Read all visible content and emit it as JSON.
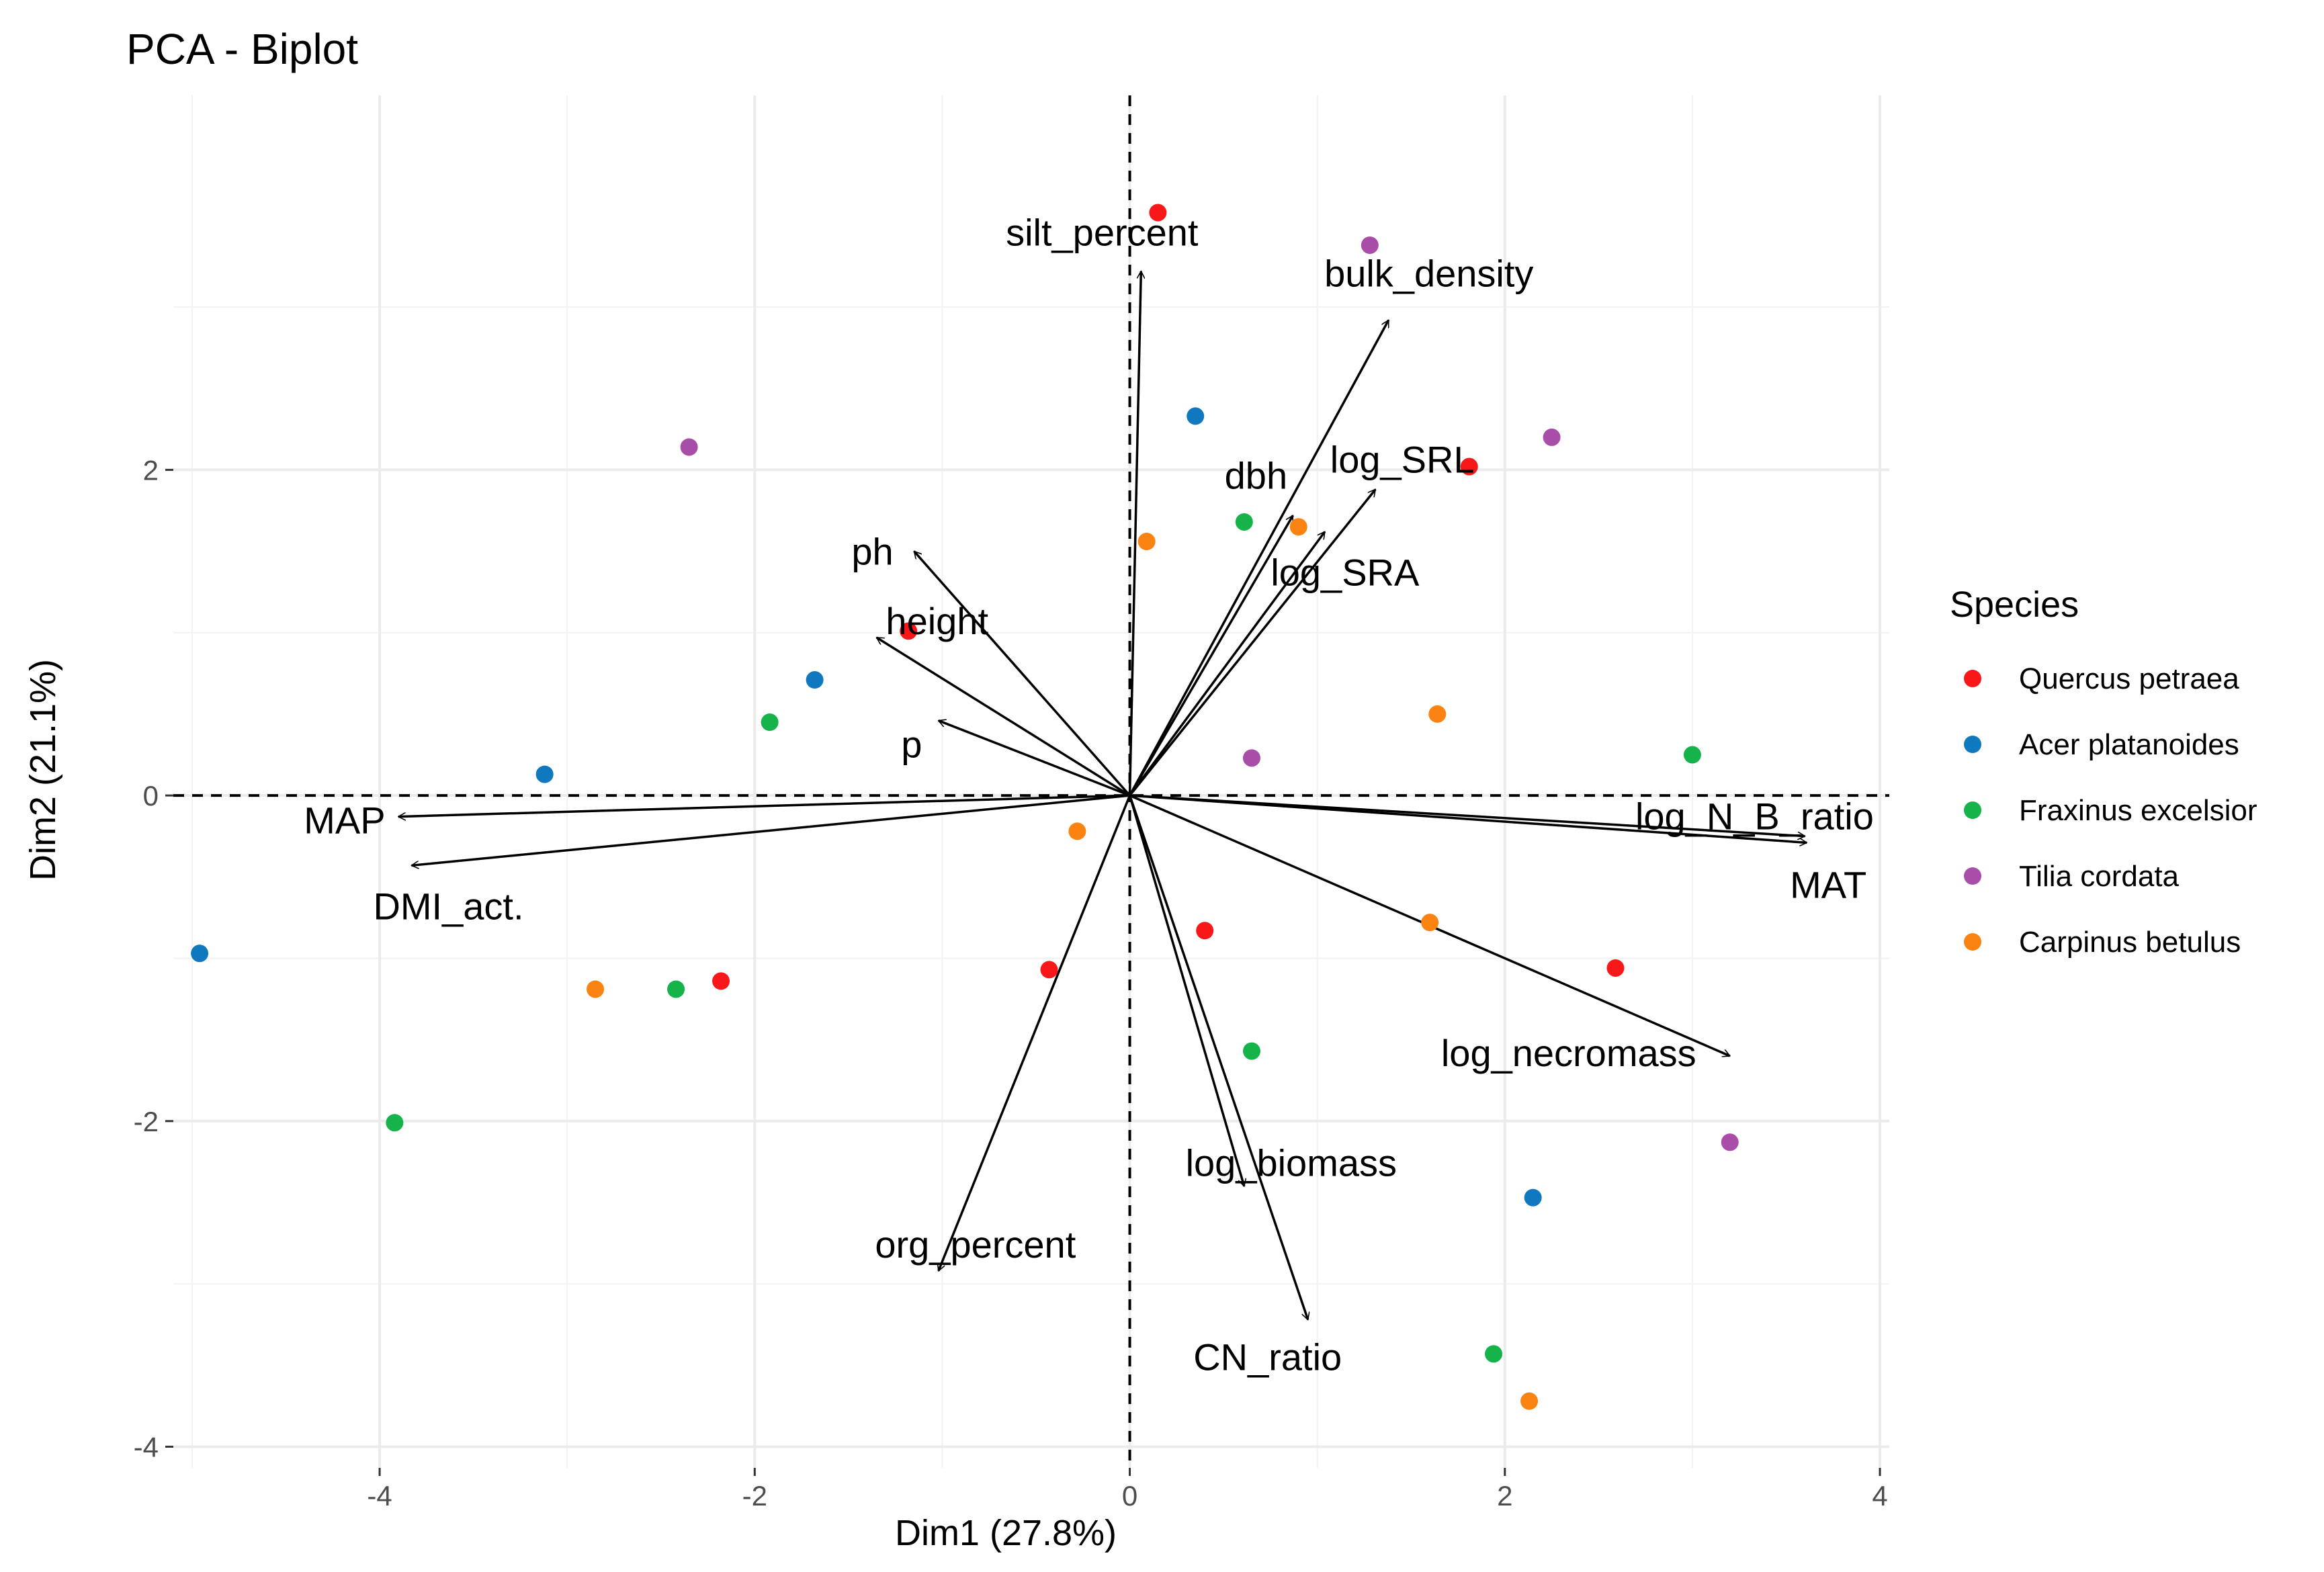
{
  "chart_data": {
    "type": "scatter",
    "title": "PCA - Biplot",
    "xlabel": "Dim1 (27.8%)",
    "ylabel": "Dim2 (21.1%)",
    "xlim": [
      -5.1,
      4.05
    ],
    "ylim": [
      -4.13,
      4.3
    ],
    "xticks": [
      -4,
      -2,
      0,
      2,
      4
    ],
    "yticks": [
      -4,
      -2,
      0,
      2
    ],
    "grid": true,
    "legend": {
      "title": "Species",
      "position": "right",
      "entries": [
        {
          "name": "Quercus petraea",
          "color": "#f8181a"
        },
        {
          "name": "Acer platanoides",
          "color": "#1078be"
        },
        {
          "name": "Fraxinus excelsior",
          "color": "#16b24a"
        },
        {
          "name": "Tilia cordata",
          "color": "#a84ea8"
        },
        {
          "name": "Carpinus betulus",
          "color": "#fa8311"
        }
      ]
    },
    "points": [
      {
        "species": "Quercus petraea",
        "x": 0.15,
        "y": 3.58
      },
      {
        "species": "Quercus petraea",
        "x": 1.81,
        "y": 2.02
      },
      {
        "species": "Quercus petraea",
        "x": -1.18,
        "y": 1.01
      },
      {
        "species": "Quercus petraea",
        "x": 0.4,
        "y": -0.83
      },
      {
        "species": "Quercus petraea",
        "x": -0.43,
        "y": -1.07
      },
      {
        "species": "Quercus petraea",
        "x": -2.18,
        "y": -1.14
      },
      {
        "species": "Quercus petraea",
        "x": 2.59,
        "y": -1.06
      },
      {
        "species": "Acer platanoides",
        "x": 0.35,
        "y": 2.33
      },
      {
        "species": "Acer platanoides",
        "x": -1.68,
        "y": 0.71
      },
      {
        "species": "Acer platanoides",
        "x": -3.12,
        "y": 0.13
      },
      {
        "species": "Acer platanoides",
        "x": -4.96,
        "y": -0.97
      },
      {
        "species": "Acer platanoides",
        "x": 2.15,
        "y": -2.47
      },
      {
        "species": "Fraxinus excelsior",
        "x": 0.61,
        "y": 1.68
      },
      {
        "species": "Fraxinus excelsior",
        "x": -1.92,
        "y": 0.45
      },
      {
        "species": "Fraxinus excelsior",
        "x": 3.0,
        "y": 0.25
      },
      {
        "species": "Fraxinus excelsior",
        "x": -2.42,
        "y": -1.19
      },
      {
        "species": "Fraxinus excelsior",
        "x": 0.65,
        "y": -1.57
      },
      {
        "species": "Fraxinus excelsior",
        "x": -3.92,
        "y": -2.01
      },
      {
        "species": "Fraxinus excelsior",
        "x": 1.94,
        "y": -3.43
      },
      {
        "species": "Tilia cordata",
        "x": 1.28,
        "y": 3.38
      },
      {
        "species": "Tilia cordata",
        "x": 2.25,
        "y": 2.2
      },
      {
        "species": "Tilia cordata",
        "x": -2.35,
        "y": 2.14
      },
      {
        "species": "Tilia cordata",
        "x": 0.65,
        "y": 0.23
      },
      {
        "species": "Tilia cordata",
        "x": 3.2,
        "y": -2.13
      },
      {
        "species": "Carpinus betulus",
        "x": 0.09,
        "y": 1.56
      },
      {
        "species": "Carpinus betulus",
        "x": 0.9,
        "y": 1.65
      },
      {
        "species": "Carpinus betulus",
        "x": 1.64,
        "y": 0.5
      },
      {
        "species": "Carpinus betulus",
        "x": -0.28,
        "y": -0.22
      },
      {
        "species": "Carpinus betulus",
        "x": 1.6,
        "y": -0.78
      },
      {
        "species": "Carpinus betulus",
        "x": -2.85,
        "y": -1.19
      },
      {
        "species": "Carpinus betulus",
        "x": 2.13,
        "y": -3.72
      }
    ],
    "variables": [
      {
        "name": "silt_percent",
        "x": 0.06,
        "y": 3.22
      },
      {
        "name": "bulk_density",
        "x": 1.38,
        "y": 2.92
      },
      {
        "name": "log_SRL",
        "x": 1.31,
        "y": 1.88
      },
      {
        "name": "dbh",
        "x": 0.87,
        "y": 1.72
      },
      {
        "name": "log_SRA",
        "x": 1.04,
        "y": 1.62
      },
      {
        "name": "ph",
        "x": -1.15,
        "y": 1.5
      },
      {
        "name": "height",
        "x": -1.35,
        "y": 0.97
      },
      {
        "name": "p",
        "x": -1.02,
        "y": 0.46
      },
      {
        "name": "MAP",
        "x": -3.9,
        "y": -0.13
      },
      {
        "name": "DMI_act.",
        "x": -3.83,
        "y": -0.43
      },
      {
        "name": "log_N_B_ratio",
        "x": 3.6,
        "y": -0.25
      },
      {
        "name": "MAT",
        "x": 3.61,
        "y": -0.29
      },
      {
        "name": "log_necromass",
        "x": 3.2,
        "y": -1.6
      },
      {
        "name": "log_biomass",
        "x": 0.61,
        "y": -2.4
      },
      {
        "name": "CN_ratio",
        "x": 0.95,
        "y": -3.22
      },
      {
        "name": "org_percent",
        "x": -1.02,
        "y": -2.92
      }
    ]
  }
}
